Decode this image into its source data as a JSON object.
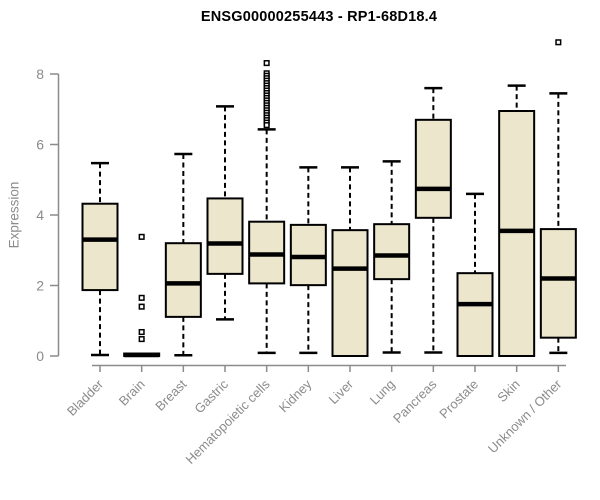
{
  "chart_data": {
    "type": "boxplot",
    "title": "ENSG00000255443 - RP1-68D18.4",
    "xlabel": "",
    "ylabel": "Expression",
    "ylim": [
      0,
      8
    ],
    "yticks": [
      0,
      2,
      4,
      6,
      8
    ],
    "grid": false,
    "legend": "none",
    "whisker_style": "dashed",
    "categories": [
      "Bladder",
      "Brain",
      "Breast",
      "Gastric",
      "Hematopoietic cells",
      "Kidney",
      "Liver",
      "Lung",
      "Pancreas",
      "Prostate",
      "Skin",
      "Unknown / Other"
    ],
    "boxes": [
      {
        "category": "Bladder",
        "whisker_low": 0.03,
        "q1": 1.87,
        "median": 3.3,
        "q3": 4.32,
        "whisker_high": 5.47,
        "outliers": []
      },
      {
        "category": "Brain",
        "whisker_low": 0.0,
        "q1": 0.0,
        "median": 0.03,
        "q3": 0.07,
        "whisker_high": 0.07,
        "outliers": [
          3.38,
          1.65,
          1.4,
          0.68,
          0.48
        ]
      },
      {
        "category": "Breast",
        "whisker_low": 0.02,
        "q1": 1.11,
        "median": 2.06,
        "q3": 3.2,
        "whisker_high": 5.73,
        "outliers": []
      },
      {
        "category": "Gastric",
        "whisker_low": 1.04,
        "q1": 2.33,
        "median": 3.19,
        "q3": 4.47,
        "whisker_high": 7.08,
        "outliers": []
      },
      {
        "category": "Hematopoietic cells",
        "whisker_low": 0.09,
        "q1": 2.06,
        "median": 2.88,
        "q3": 3.81,
        "whisker_high": 6.43,
        "outliers": [
          8.31,
          8.02,
          7.95,
          7.88,
          7.81,
          7.74,
          7.67,
          7.6,
          7.53,
          7.46,
          7.39,
          7.32,
          7.25,
          7.18,
          7.11,
          7.04,
          6.97,
          6.9,
          6.83,
          6.76,
          6.69,
          6.62,
          6.55
        ]
      },
      {
        "category": "Kidney",
        "whisker_low": 0.09,
        "q1": 2.01,
        "median": 2.81,
        "q3": 3.72,
        "whisker_high": 5.35,
        "outliers": []
      },
      {
        "category": "Liver",
        "whisker_low": 0.0,
        "q1": 0.0,
        "median": 2.48,
        "q3": 3.57,
        "whisker_high": 5.35,
        "outliers": []
      },
      {
        "category": "Lung",
        "whisker_low": 0.1,
        "q1": 2.18,
        "median": 2.85,
        "q3": 3.74,
        "whisker_high": 5.52,
        "outliers": []
      },
      {
        "category": "Pancreas",
        "whisker_low": 0.1,
        "q1": 3.92,
        "median": 4.74,
        "q3": 6.7,
        "whisker_high": 7.6,
        "outliers": []
      },
      {
        "category": "Prostate",
        "whisker_low": 0.0,
        "q1": 0.0,
        "median": 1.47,
        "q3": 2.35,
        "whisker_high": 4.6,
        "outliers": []
      },
      {
        "category": "Skin",
        "whisker_low": 0.0,
        "q1": 0.0,
        "median": 3.55,
        "q3": 6.95,
        "whisker_high": 7.67,
        "outliers": []
      },
      {
        "category": "Unknown / Other",
        "whisker_low": 0.09,
        "q1": 0.52,
        "median": 2.2,
        "q3": 3.6,
        "whisker_high": 7.45,
        "outliers": [
          8.9
        ]
      }
    ],
    "colors": {
      "box_fill": "#ECE7CC",
      "box_border": "#000000",
      "median": "#000000",
      "whisker": "#000000",
      "outlier_fill": "#ffffff",
      "axis": "#8b8b8b",
      "tick_label": "#8b8b8b",
      "title": "#000000",
      "background": "#ffffff"
    }
  }
}
